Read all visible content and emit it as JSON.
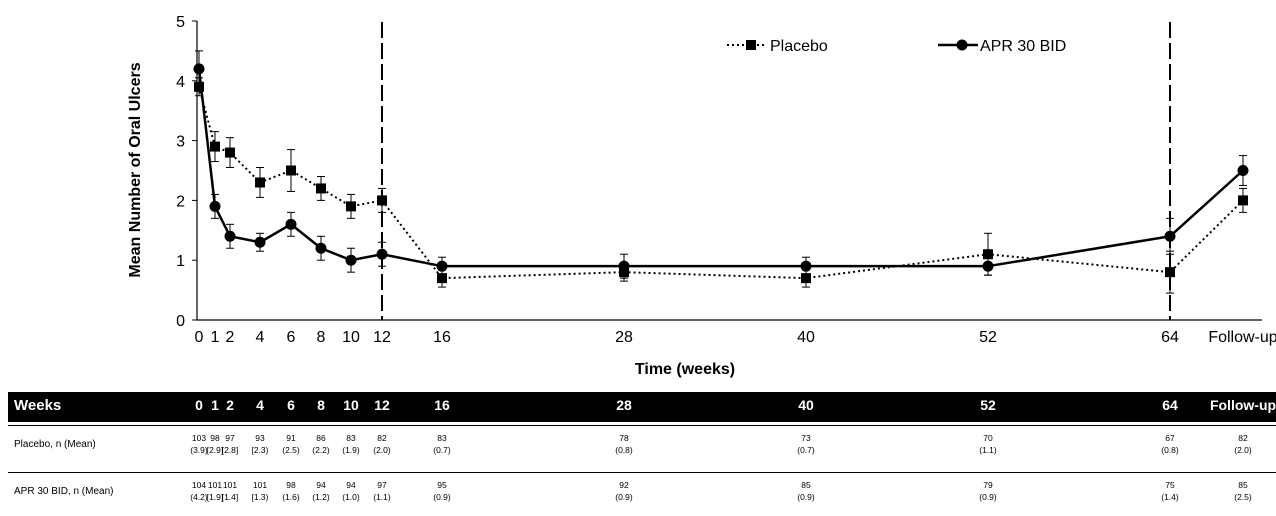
{
  "chart_data": {
    "type": "line",
    "xlabel": "Time (weeks)",
    "ylabel": "Mean Number of Oral Ulcers",
    "ylim": [
      0,
      5
    ],
    "yticks": [
      "0",
      "1",
      "2",
      "3",
      "4",
      "5"
    ],
    "xticks": [
      "0",
      "1",
      "2",
      "4",
      "6",
      "8",
      "10",
      "12",
      "16",
      "28",
      "40",
      "52",
      "64",
      "Follow-up"
    ],
    "vertical_reference_lines": [
      "12",
      "64"
    ],
    "legend": {
      "placement": "top-right"
    },
    "series": [
      {
        "name": "Placebo",
        "style": "dotted",
        "marker": "square",
        "values": [
          3.9,
          2.9,
          2.8,
          2.3,
          2.5,
          2.2,
          1.9,
          2.0,
          0.7,
          0.8,
          0.7,
          1.1,
          0.8,
          2.0
        ],
        "error": [
          0.15,
          0.25,
          0.25,
          0.25,
          0.35,
          0.2,
          0.2,
          0.2,
          0.15,
          0.15,
          0.15,
          0.35,
          0.35,
          0.2
        ]
      },
      {
        "name": "APR 30 BID",
        "style": "solid",
        "marker": "circle",
        "values": [
          4.2,
          1.9,
          1.4,
          1.3,
          1.6,
          1.2,
          1.0,
          1.1,
          0.9,
          0.9,
          0.9,
          0.9,
          1.4,
          2.5
        ],
        "error": [
          0.3,
          0.2,
          0.2,
          0.15,
          0.2,
          0.2,
          0.2,
          0.2,
          0.15,
          0.2,
          0.15,
          0.15,
          0.3,
          0.25
        ]
      }
    ]
  },
  "table": {
    "header_label": "Weeks",
    "weeks": [
      "0",
      "1",
      "2",
      "4",
      "6",
      "8",
      "10",
      "12",
      "16",
      "28",
      "40",
      "52",
      "64",
      "Follow-up"
    ],
    "rows": [
      {
        "label": "Placebo, n (Mean)",
        "n": [
          "103",
          "98",
          "97",
          "93",
          "91",
          "86",
          "83",
          "82",
          "83",
          "78",
          "73",
          "70",
          "67",
          "82"
        ],
        "mean": [
          "(3.9)",
          "[2.9]",
          "[2.8]",
          "[2.3)",
          "(2.5)",
          "(2.2)",
          "(1.9)",
          "(2.0)",
          "(0.7)",
          "(0.8)",
          "(0.7)",
          "(1.1)",
          "(0.8)",
          "(2.0)"
        ]
      },
      {
        "label": "APR 30 BID, n (Mean)",
        "n": [
          "104",
          "101",
          "101",
          "101",
          "98",
          "94",
          "94",
          "97",
          "95",
          "92",
          "85",
          "79",
          "75",
          "85"
        ],
        "mean": [
          "(4.2)",
          "[1.9]",
          "[1.4]",
          "[1.3)",
          "(1.6)",
          "(1.2)",
          "(1.0)",
          "(1.1)",
          "(0.9)",
          "(0.9)",
          "(0.9)",
          "(0.9)",
          "(1.4)",
          "(2.5)"
        ]
      }
    ]
  }
}
